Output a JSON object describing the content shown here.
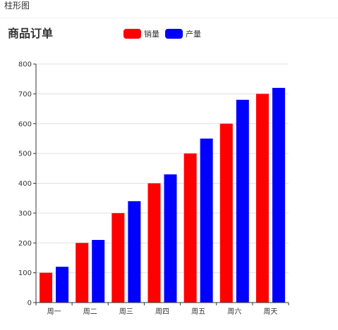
{
  "page": {
    "heading": "柱形图"
  },
  "colors": {
    "series_0": "#ff0000",
    "series_1": "#0000ff",
    "grid": "#e0e0e0",
    "axis": "#333333"
  },
  "chart_data": {
    "type": "bar",
    "title": "商品订单",
    "categories": [
      "周一",
      "周二",
      "周三",
      "周四",
      "周五",
      "周六",
      "周天"
    ],
    "series": [
      {
        "name": "销量",
        "values": [
          100,
          200,
          300,
          400,
          500,
          600,
          700
        ]
      },
      {
        "name": "产量",
        "values": [
          120,
          210,
          340,
          430,
          550,
          680,
          720
        ]
      }
    ],
    "ylim": [
      0,
      800
    ],
    "yticks": [
      0,
      100,
      200,
      300,
      400,
      500,
      600,
      700,
      800
    ],
    "grid": true,
    "legend_position": "top"
  }
}
